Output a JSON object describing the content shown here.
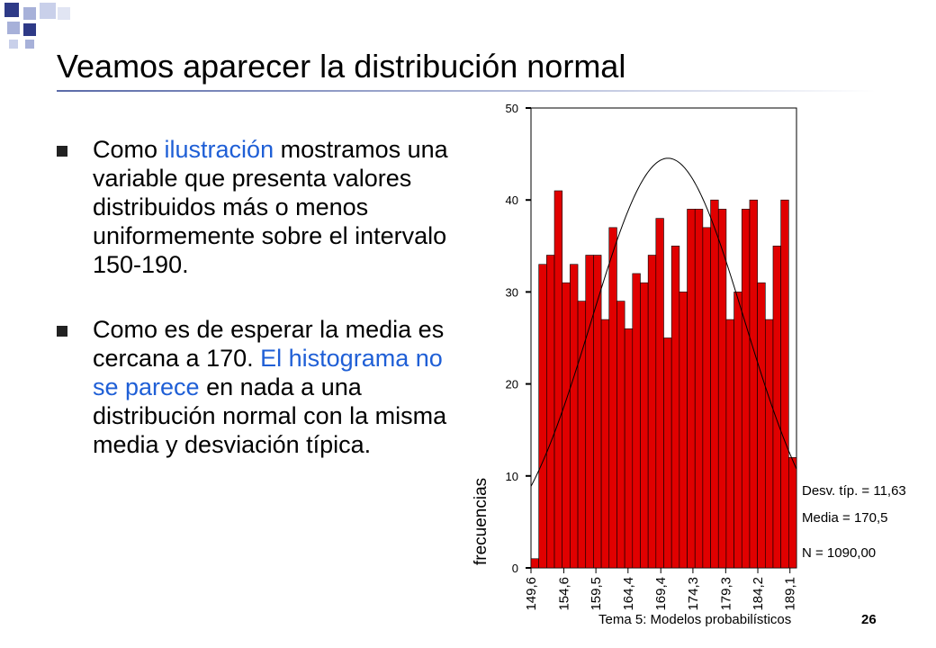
{
  "slide": {
    "title": "Veamos aparecer la distribución normal",
    "bullets": [
      {
        "segments": [
          {
            "text": "Como ",
            "highlight": false
          },
          {
            "text": "ilustración",
            "highlight": true
          },
          {
            "text": " mostramos una variable que presenta valores distribuidos más o menos uniformemente sobre el intervalo 150-190.",
            "highlight": false
          }
        ]
      },
      {
        "segments": [
          {
            "text": "Como es de esperar la media es cercana a 170. ",
            "highlight": false
          },
          {
            "text": "El histograma no se parece",
            "highlight": true
          },
          {
            "text": " en nada a una distribución normal con la misma media y desviación típica.",
            "highlight": false
          }
        ]
      }
    ],
    "footer": "Tema 5: Modelos probabilísticos",
    "page_number": "26",
    "colors": {
      "accent": "#1f5fd6",
      "bar": "#e00000",
      "deco_dark": "#2e3a87",
      "deco_light": "#a7b1d9"
    }
  },
  "chart_data": {
    "type": "bar",
    "ylabel": "frecuencias",
    "ylim": [
      0,
      50
    ],
    "yticks": [
      "0",
      "10",
      "20",
      "30",
      "40",
      "50"
    ],
    "xlim": [
      149.6,
      190.1
    ],
    "xticks": [
      "149,6",
      "154,6",
      "159,5",
      "164,4",
      "169,4",
      "174,3",
      "179,3",
      "184,2",
      "189,1"
    ],
    "xtick_values": [
      149.6,
      154.6,
      159.5,
      164.4,
      169.4,
      174.3,
      179.3,
      184.2,
      189.1
    ],
    "values": [
      1,
      33,
      34,
      41,
      31,
      33,
      29,
      34,
      34,
      27,
      37,
      29,
      26,
      32,
      31,
      34,
      38,
      25,
      35,
      30,
      39,
      39,
      37,
      40,
      39,
      27,
      30,
      39,
      40,
      31,
      27,
      35,
      40,
      12
    ],
    "normal_curve": {
      "mean": 170.5,
      "sd": 11.63,
      "n": 1090
    },
    "stats": [
      "Desv. típ. = 11,63",
      "Media = 170,5",
      "N = 1090,00"
    ]
  }
}
